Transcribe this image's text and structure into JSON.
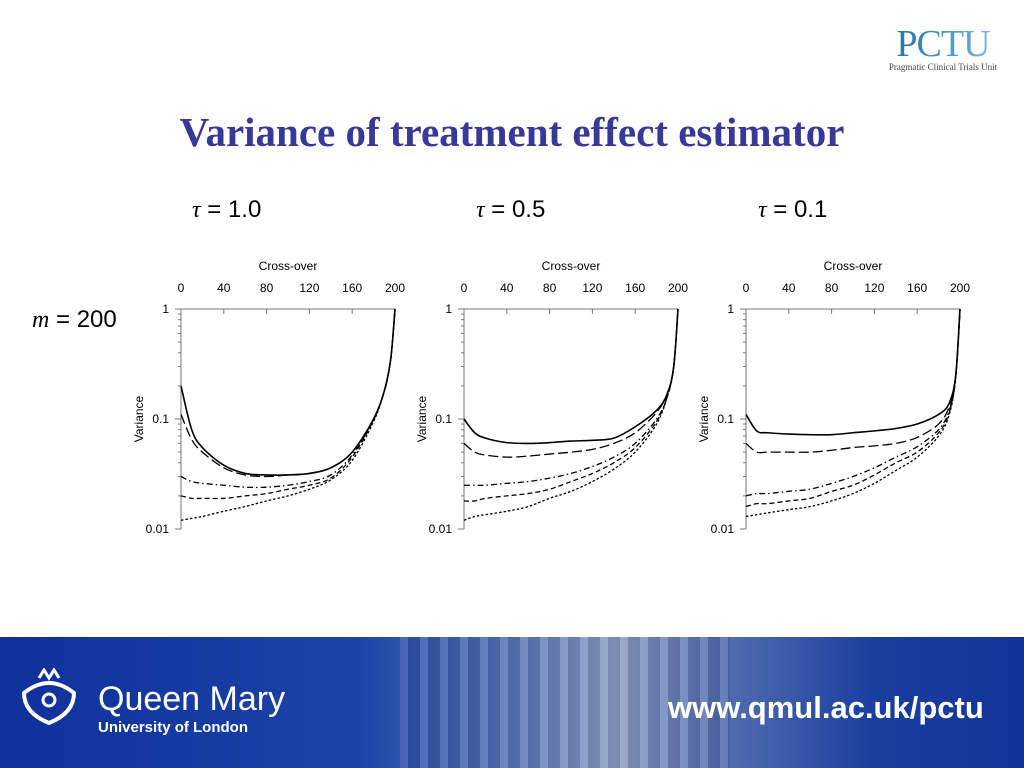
{
  "header": {
    "logo_text": "PCTU",
    "logo_subtitle": "Pragmatic Clinical Trials Unit",
    "title": "Variance of treatment effect estimator"
  },
  "row_label": {
    "symbol": "m",
    "text": " = 200"
  },
  "footer": {
    "university_name": "Queen Mary",
    "university_sub": "University of London",
    "url": "www.qmul.ac.uk/pctu"
  },
  "chart_data": [
    {
      "type": "line",
      "title_symbol": "τ",
      "title": " = 1.0",
      "xlabel": "Cross-over",
      "ylabel": "Variance",
      "xlim": [
        0,
        200
      ],
      "ylim": [
        0.01,
        1
      ],
      "yscale": "log",
      "xticks": [
        "0",
        "40",
        "80",
        "120",
        "160",
        "200"
      ],
      "yticks": [
        "1",
        "0.1",
        "0.01"
      ],
      "grid": false,
      "x": [
        0,
        10,
        20,
        40,
        60,
        80,
        100,
        120,
        140,
        160,
        180,
        190,
        196,
        200
      ],
      "series": [
        {
          "style": "solid",
          "values": [
            0.2,
            0.08,
            0.055,
            0.038,
            0.032,
            0.031,
            0.031,
            0.032,
            0.036,
            0.05,
            0.1,
            0.18,
            0.35,
            1
          ]
        },
        {
          "style": "long-dash",
          "values": [
            0.11,
            0.065,
            0.05,
            0.036,
            0.031,
            0.03,
            0.031,
            0.032,
            0.036,
            0.05,
            0.1,
            0.18,
            0.35,
            1
          ]
        },
        {
          "style": "dash-dot",
          "values": [
            0.03,
            0.027,
            0.026,
            0.025,
            0.024,
            0.024,
            0.025,
            0.027,
            0.031,
            0.047,
            0.1,
            0.18,
            0.35,
            1
          ]
        },
        {
          "style": "dash",
          "values": [
            0.02,
            0.019,
            0.019,
            0.019,
            0.02,
            0.021,
            0.023,
            0.025,
            0.029,
            0.045,
            0.098,
            0.18,
            0.35,
            1
          ]
        },
        {
          "style": "dot",
          "values": [
            0.012,
            0.0125,
            0.013,
            0.0145,
            0.016,
            0.018,
            0.02,
            0.023,
            0.028,
            0.042,
            0.095,
            0.18,
            0.35,
            1
          ]
        }
      ]
    },
    {
      "type": "line",
      "title_symbol": "τ",
      "title": " = 0.5",
      "xlabel": "Cross-over",
      "ylabel": "Variance",
      "xlim": [
        0,
        200
      ],
      "ylim": [
        0.01,
        1
      ],
      "yscale": "log",
      "xticks": [
        "0",
        "40",
        "80",
        "120",
        "160",
        "200"
      ],
      "yticks": [
        "1",
        "0.1",
        "0.01"
      ],
      "grid": false,
      "x": [
        0,
        10,
        20,
        40,
        60,
        80,
        100,
        120,
        140,
        160,
        180,
        190,
        196,
        200
      ],
      "series": [
        {
          "style": "solid",
          "values": [
            0.1,
            0.075,
            0.067,
            0.061,
            0.06,
            0.061,
            0.063,
            0.064,
            0.067,
            0.085,
            0.12,
            0.17,
            0.3,
            1
          ]
        },
        {
          "style": "long-dash",
          "values": [
            0.06,
            0.05,
            0.047,
            0.045,
            0.046,
            0.048,
            0.05,
            0.053,
            0.06,
            0.075,
            0.115,
            0.17,
            0.3,
            1
          ]
        },
        {
          "style": "dash-dot",
          "values": [
            0.025,
            0.025,
            0.025,
            0.026,
            0.027,
            0.029,
            0.032,
            0.037,
            0.045,
            0.06,
            0.1,
            0.16,
            0.3,
            1
          ]
        },
        {
          "style": "dash",
          "values": [
            0.018,
            0.018,
            0.019,
            0.02,
            0.021,
            0.023,
            0.027,
            0.032,
            0.04,
            0.055,
            0.095,
            0.16,
            0.3,
            1
          ]
        },
        {
          "style": "dot",
          "values": [
            0.012,
            0.013,
            0.0135,
            0.0145,
            0.016,
            0.019,
            0.022,
            0.027,
            0.035,
            0.05,
            0.09,
            0.16,
            0.3,
            1
          ]
        }
      ]
    },
    {
      "type": "line",
      "title_symbol": "τ",
      "title": " = 0.1",
      "xlabel": "Cross-over",
      "ylabel": "Variance",
      "xlim": [
        0,
        200
      ],
      "ylim": [
        0.01,
        1
      ],
      "yscale": "log",
      "xticks": [
        "0",
        "40",
        "80",
        "120",
        "160",
        "200"
      ],
      "yticks": [
        "1",
        "0.1",
        "0.01"
      ],
      "grid": false,
      "x": [
        0,
        10,
        20,
        40,
        60,
        80,
        100,
        120,
        140,
        160,
        180,
        190,
        196,
        200
      ],
      "series": [
        {
          "style": "solid",
          "values": [
            0.11,
            0.078,
            0.075,
            0.073,
            0.072,
            0.072,
            0.075,
            0.078,
            0.082,
            0.09,
            0.11,
            0.14,
            0.25,
            1
          ]
        },
        {
          "style": "long-dash",
          "values": [
            0.06,
            0.05,
            0.05,
            0.05,
            0.05,
            0.052,
            0.055,
            0.057,
            0.06,
            0.068,
            0.09,
            0.13,
            0.25,
            1
          ]
        },
        {
          "style": "dash-dot",
          "values": [
            0.02,
            0.021,
            0.021,
            0.022,
            0.023,
            0.026,
            0.03,
            0.036,
            0.045,
            0.056,
            0.08,
            0.12,
            0.24,
            1
          ]
        },
        {
          "style": "dash",
          "values": [
            0.016,
            0.017,
            0.017,
            0.018,
            0.019,
            0.022,
            0.025,
            0.031,
            0.04,
            0.05,
            0.075,
            0.115,
            0.24,
            1
          ]
        },
        {
          "style": "dot",
          "values": [
            0.013,
            0.0135,
            0.014,
            0.015,
            0.016,
            0.018,
            0.021,
            0.026,
            0.034,
            0.045,
            0.07,
            0.11,
            0.24,
            1
          ]
        }
      ]
    }
  ]
}
